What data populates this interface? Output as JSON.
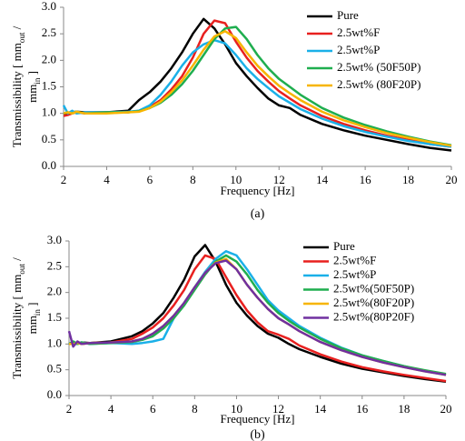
{
  "chart_data": [
    {
      "type": "line",
      "caption": "(a)",
      "xlabel": "Frequency [Hz]",
      "ylabel": [
        [
          "Transmissibility [ mm",
          "out",
          " /"
        ],
        [
          "mm",
          "in",
          " ]"
        ]
      ],
      "xlim": [
        2,
        20
      ],
      "ylim": [
        0,
        3
      ],
      "xticks": [
        2,
        4,
        6,
        8,
        10,
        12,
        14,
        16,
        18,
        20
      ],
      "yticks": [
        {
          "value": 0,
          "label": "0.0"
        },
        0.5,
        {
          "value": 1,
          "label": "1.0"
        },
        1.5,
        {
          "value": 2,
          "label": "2.0"
        },
        2.5,
        {
          "value": 3,
          "label": "3.0"
        }
      ],
      "x": [
        2,
        2.2,
        2.4,
        2.6,
        3,
        4,
        5,
        5.5,
        6,
        6.5,
        7,
        7.5,
        8,
        8.5,
        9,
        9.5,
        10,
        10.5,
        11,
        11.5,
        12,
        12.5,
        13,
        14,
        15,
        16,
        17,
        18,
        19,
        20
      ],
      "series": [
        {
          "name": "Pure",
          "color": "#000000",
          "values": [
            1.0,
            1.0,
            1.02,
            1.03,
            1.02,
            1.02,
            1.05,
            1.25,
            1.4,
            1.6,
            1.85,
            2.15,
            2.5,
            2.78,
            2.6,
            2.3,
            1.95,
            1.7,
            1.48,
            1.28,
            1.15,
            1.1,
            0.97,
            0.8,
            0.68,
            0.58,
            0.5,
            0.42,
            0.35,
            0.3
          ]
        },
        {
          "name": "2.5wt%F",
          "color": "#e8201f",
          "values": [
            0.95,
            0.97,
            1.0,
            1.02,
            1.0,
            1.02,
            1.02,
            1.05,
            1.12,
            1.25,
            1.45,
            1.7,
            2.05,
            2.5,
            2.75,
            2.7,
            2.35,
            2.05,
            1.8,
            1.6,
            1.42,
            1.28,
            1.15,
            0.95,
            0.8,
            0.68,
            0.58,
            0.5,
            0.42,
            0.37
          ]
        },
        {
          "name": "2.5wt%P",
          "color": "#1ab0e8",
          "values": [
            1.15,
            1.0,
            1.05,
            1.0,
            1.02,
            1.02,
            1.03,
            1.05,
            1.15,
            1.35,
            1.6,
            1.9,
            2.15,
            2.3,
            2.38,
            2.32,
            2.1,
            1.85,
            1.65,
            1.48,
            1.32,
            1.2,
            1.08,
            0.9,
            0.76,
            0.65,
            0.56,
            0.48,
            0.42,
            0.37
          ]
        },
        {
          "name": "2.5wt% (50F50P)",
          "color": "#1fae4f",
          "values": [
            1.0,
            1.02,
            1.0,
            1.03,
            1.0,
            1.02,
            1.02,
            1.04,
            1.1,
            1.2,
            1.35,
            1.55,
            1.8,
            2.1,
            2.4,
            2.6,
            2.63,
            2.4,
            2.1,
            1.85,
            1.65,
            1.5,
            1.35,
            1.1,
            0.92,
            0.78,
            0.66,
            0.56,
            0.47,
            0.4
          ]
        },
        {
          "name": "2.5wt% (80F20P)",
          "color": "#f7b500",
          "values": [
            1.0,
            1.02,
            1.0,
            1.03,
            1.0,
            1.0,
            1.02,
            1.03,
            1.1,
            1.22,
            1.4,
            1.62,
            1.9,
            2.2,
            2.45,
            2.55,
            2.42,
            2.15,
            1.9,
            1.7,
            1.52,
            1.38,
            1.25,
            1.03,
            0.87,
            0.74,
            0.63,
            0.54,
            0.46,
            0.39
          ]
        }
      ]
    },
    {
      "type": "line",
      "caption": "(b)",
      "xlabel": "Frequency [Hz]",
      "ylabel": [
        [
          "Transmissibility [ mm",
          "out",
          " /"
        ],
        [
          "mm",
          "in",
          " ]"
        ]
      ],
      "xlim": [
        2,
        20
      ],
      "ylim": [
        0,
        3
      ],
      "xticks": [
        2,
        4,
        6,
        8,
        10,
        12,
        14,
        16,
        18,
        20
      ],
      "yticks": [
        {
          "value": 0,
          "label": "0.0"
        },
        0.5,
        {
          "value": 1,
          "label": "1.0"
        },
        1.5,
        {
          "value": 2,
          "label": "2.0"
        },
        2.5,
        {
          "value": 3,
          "label": "3.0"
        }
      ],
      "x": [
        2,
        2.2,
        2.4,
        2.6,
        3,
        4,
        5,
        5.5,
        6,
        6.5,
        7,
        7.5,
        8,
        8.5,
        9,
        9.5,
        10,
        10.5,
        11,
        11.5,
        12,
        12.5,
        13,
        14,
        15,
        16,
        17,
        18,
        19,
        20
      ],
      "series": [
        {
          "name": "Pure",
          "color": "#000000",
          "values": [
            1.0,
            1.02,
            1.0,
            1.03,
            1.02,
            1.05,
            1.15,
            1.25,
            1.4,
            1.6,
            1.9,
            2.25,
            2.7,
            2.92,
            2.6,
            2.15,
            1.8,
            1.55,
            1.35,
            1.2,
            1.12,
            1.0,
            0.9,
            0.75,
            0.62,
            0.52,
            0.45,
            0.38,
            0.32,
            0.27
          ]
        },
        {
          "name": "2.5wt%F",
          "color": "#e8201f",
          "values": [
            1.0,
            1.0,
            1.02,
            1.0,
            1.02,
            1.03,
            1.1,
            1.2,
            1.32,
            1.5,
            1.75,
            2.05,
            2.45,
            2.72,
            2.65,
            2.3,
            1.95,
            1.65,
            1.42,
            1.25,
            1.18,
            1.1,
            0.97,
            0.8,
            0.66,
            0.55,
            0.47,
            0.4,
            0.34,
            0.28
          ]
        },
        {
          "name": "2.5wt%P",
          "color": "#1ab0e8",
          "values": [
            1.0,
            1.02,
            1.0,
            1.03,
            1.0,
            1.02,
            1.0,
            1.02,
            1.05,
            1.1,
            1.5,
            1.8,
            2.1,
            2.4,
            2.65,
            2.8,
            2.72,
            2.45,
            2.15,
            1.85,
            1.65,
            1.5,
            1.35,
            1.12,
            0.93,
            0.78,
            0.67,
            0.57,
            0.48,
            0.4
          ]
        },
        {
          "name": "2.5wt%(50F50P)",
          "color": "#1fae4f",
          "values": [
            1.0,
            1.05,
            1.0,
            1.03,
            1.0,
            1.02,
            1.04,
            1.08,
            1.15,
            1.3,
            1.5,
            1.75,
            2.05,
            2.35,
            2.6,
            2.72,
            2.6,
            2.35,
            2.05,
            1.8,
            1.6,
            1.45,
            1.32,
            1.1,
            0.92,
            0.78,
            0.67,
            0.57,
            0.49,
            0.42
          ]
        },
        {
          "name": "2.5wt%(80F20P)",
          "color": "#f7b500",
          "values": [
            1.0,
            1.0,
            1.02,
            1.0,
            1.02,
            1.03,
            1.05,
            1.1,
            1.2,
            1.35,
            1.55,
            1.8,
            2.1,
            2.38,
            2.58,
            2.65,
            2.45,
            2.15,
            1.9,
            1.68,
            1.5,
            1.38,
            1.25,
            1.04,
            0.88,
            0.75,
            0.64,
            0.55,
            0.47,
            0.4
          ]
        },
        {
          "name": "2.5wt%(80P20F)",
          "color": "#7030a0",
          "values": [
            1.25,
            0.95,
            1.05,
            1.0,
            1.02,
            1.03,
            1.05,
            1.1,
            1.2,
            1.35,
            1.55,
            1.8,
            2.1,
            2.38,
            2.57,
            2.62,
            2.45,
            2.15,
            1.9,
            1.68,
            1.5,
            1.38,
            1.25,
            1.04,
            0.88,
            0.75,
            0.64,
            0.55,
            0.47,
            0.4
          ]
        }
      ]
    }
  ]
}
